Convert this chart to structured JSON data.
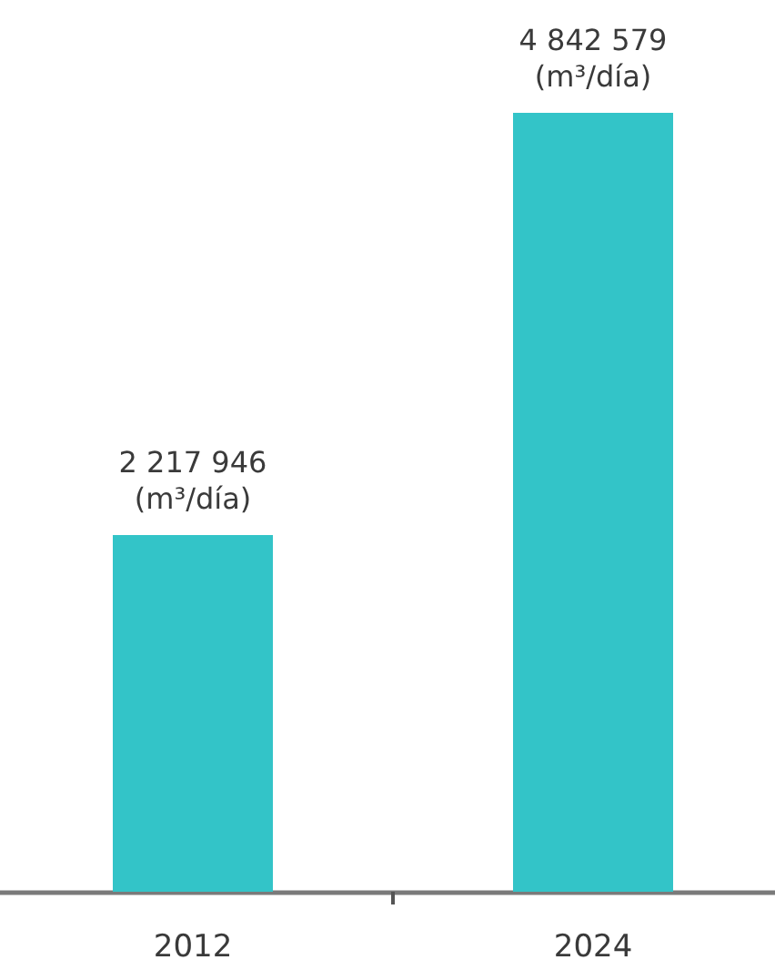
{
  "chart_data": {
    "type": "bar",
    "categories": [
      "2012",
      "2024"
    ],
    "values": [
      2217946,
      4842579
    ],
    "color": "#33c4c8",
    "value_labels": [
      "2 217 946\n(m³/día)",
      "4 842 579\n(m³/día)"
    ]
  }
}
